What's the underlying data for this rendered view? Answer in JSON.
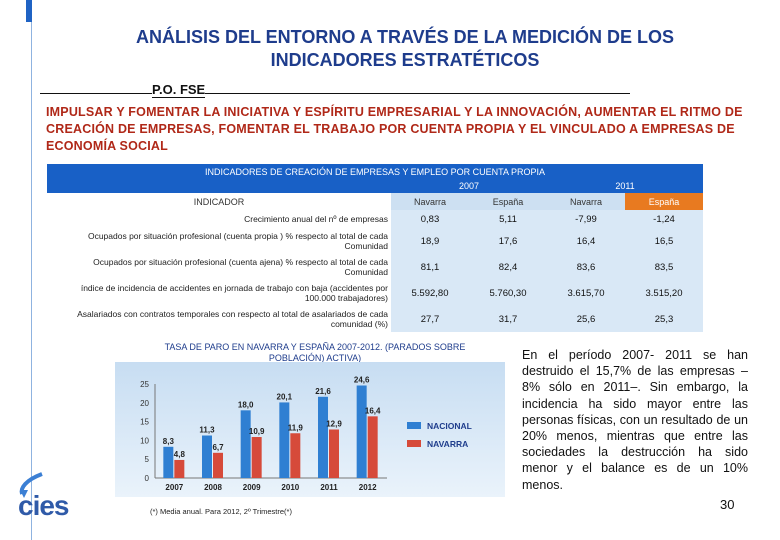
{
  "title": {
    "line1": "ANÁLISIS DEL ENTORNO A TRAVÉS DE LA MEDICIÓN DE LOS",
    "line2": "INDICADORES ESTRATÉTICOS"
  },
  "subtitle": "P.O. FSE",
  "headline": "IMPULSAR Y FOMENTAR LA INICIATIVA Y ESPÍRITU EMPRESARIAL Y LA INNOVACIÓN, AUMENTAR EL RITMO DE CREACIÓN DE EMPRESAS, FOMENTAR EL TRABAJO POR CUENTA PROPIA Y EL VINCULADO A EMPRESAS DE ECONOMÍA SOCIAL",
  "table": {
    "header": "INDICADORES DE CREACIÓN DE EMPRESAS Y EMPLEO POR CUENTA PROPIA",
    "years": [
      "2007",
      "2011"
    ],
    "indicator_label": "INDICADOR",
    "cols": [
      "Navarra",
      "España",
      "Navarra",
      "España"
    ],
    "rows": [
      {
        "label": "Crecimiento anual del nº de empresas",
        "values": [
          "0,83",
          "5,11",
          "-7,99",
          "-1,24"
        ]
      },
      {
        "label": "Ocupados por situación profesional (cuenta propia ) % respecto al total de cada Comunidad",
        "values": [
          "18,9",
          "17,6",
          "16,4",
          "16,5"
        ]
      },
      {
        "label": "Ocupados por situación profesional (cuenta ajena) % respecto al total de cada Comunidad",
        "values": [
          "81,1",
          "82,4",
          "83,6",
          "83,5"
        ]
      },
      {
        "label": "índice de incidencia de accidentes en jornada de trabajo con baja (accidentes por 100.000 trabajadores)",
        "values": [
          "5.592,80",
          "5.760,30",
          "3.615,70",
          "3.515,20"
        ]
      },
      {
        "label": "Asalariados con contratos temporales con respecto al total de asalariados de cada comunidad (%)",
        "values": [
          "27,7",
          "31,7",
          "25,6",
          "25,3"
        ]
      }
    ]
  },
  "chart_title": "TASA DE PARO EN NAVARRA Y ESPAÑA 2007-2012. (PARADOS SOBRE POBLACIÓN) ACTIVA)",
  "chart_data": {
    "type": "bar",
    "categories": [
      "2007",
      "2008",
      "2009",
      "2010",
      "2011",
      "2012"
    ],
    "series": [
      {
        "name": "NACIONAL",
        "values": [
          8.3,
          11.3,
          18.0,
          20.1,
          21.6,
          24.6
        ],
        "labels": [
          "8,3",
          "11,3",
          "18,0",
          "20,1",
          "21,6",
          "24,6"
        ],
        "color": "#2f7fd2"
      },
      {
        "name": "NAVARRA",
        "values": [
          4.8,
          6.7,
          10.9,
          11.9,
          12.9,
          16.4
        ],
        "labels": [
          "4,8",
          "6,7",
          "10,9",
          "11,9",
          "12,9",
          "16,4"
        ],
        "color": "#d64a3a"
      }
    ],
    "yticks": [
      0,
      5,
      10,
      15,
      20,
      25
    ],
    "ylim": [
      0,
      25
    ]
  },
  "footnote": "(*) Media anual. Para 2012, 2º Trimestre(*)",
  "paragraph": "En el período 2007- 2011 se han destruido el 15,7% de las empresas – 8% sólo en 2011–. Sin embargo, la incidencia ha sido mayor entre las personas físicas, con un resultado de un 20% menos, mientras que entre las sociedades la destrucción ha sido menor y el balance es de un 10% menos.",
  "page_number": "30",
  "logo_text": "cies"
}
